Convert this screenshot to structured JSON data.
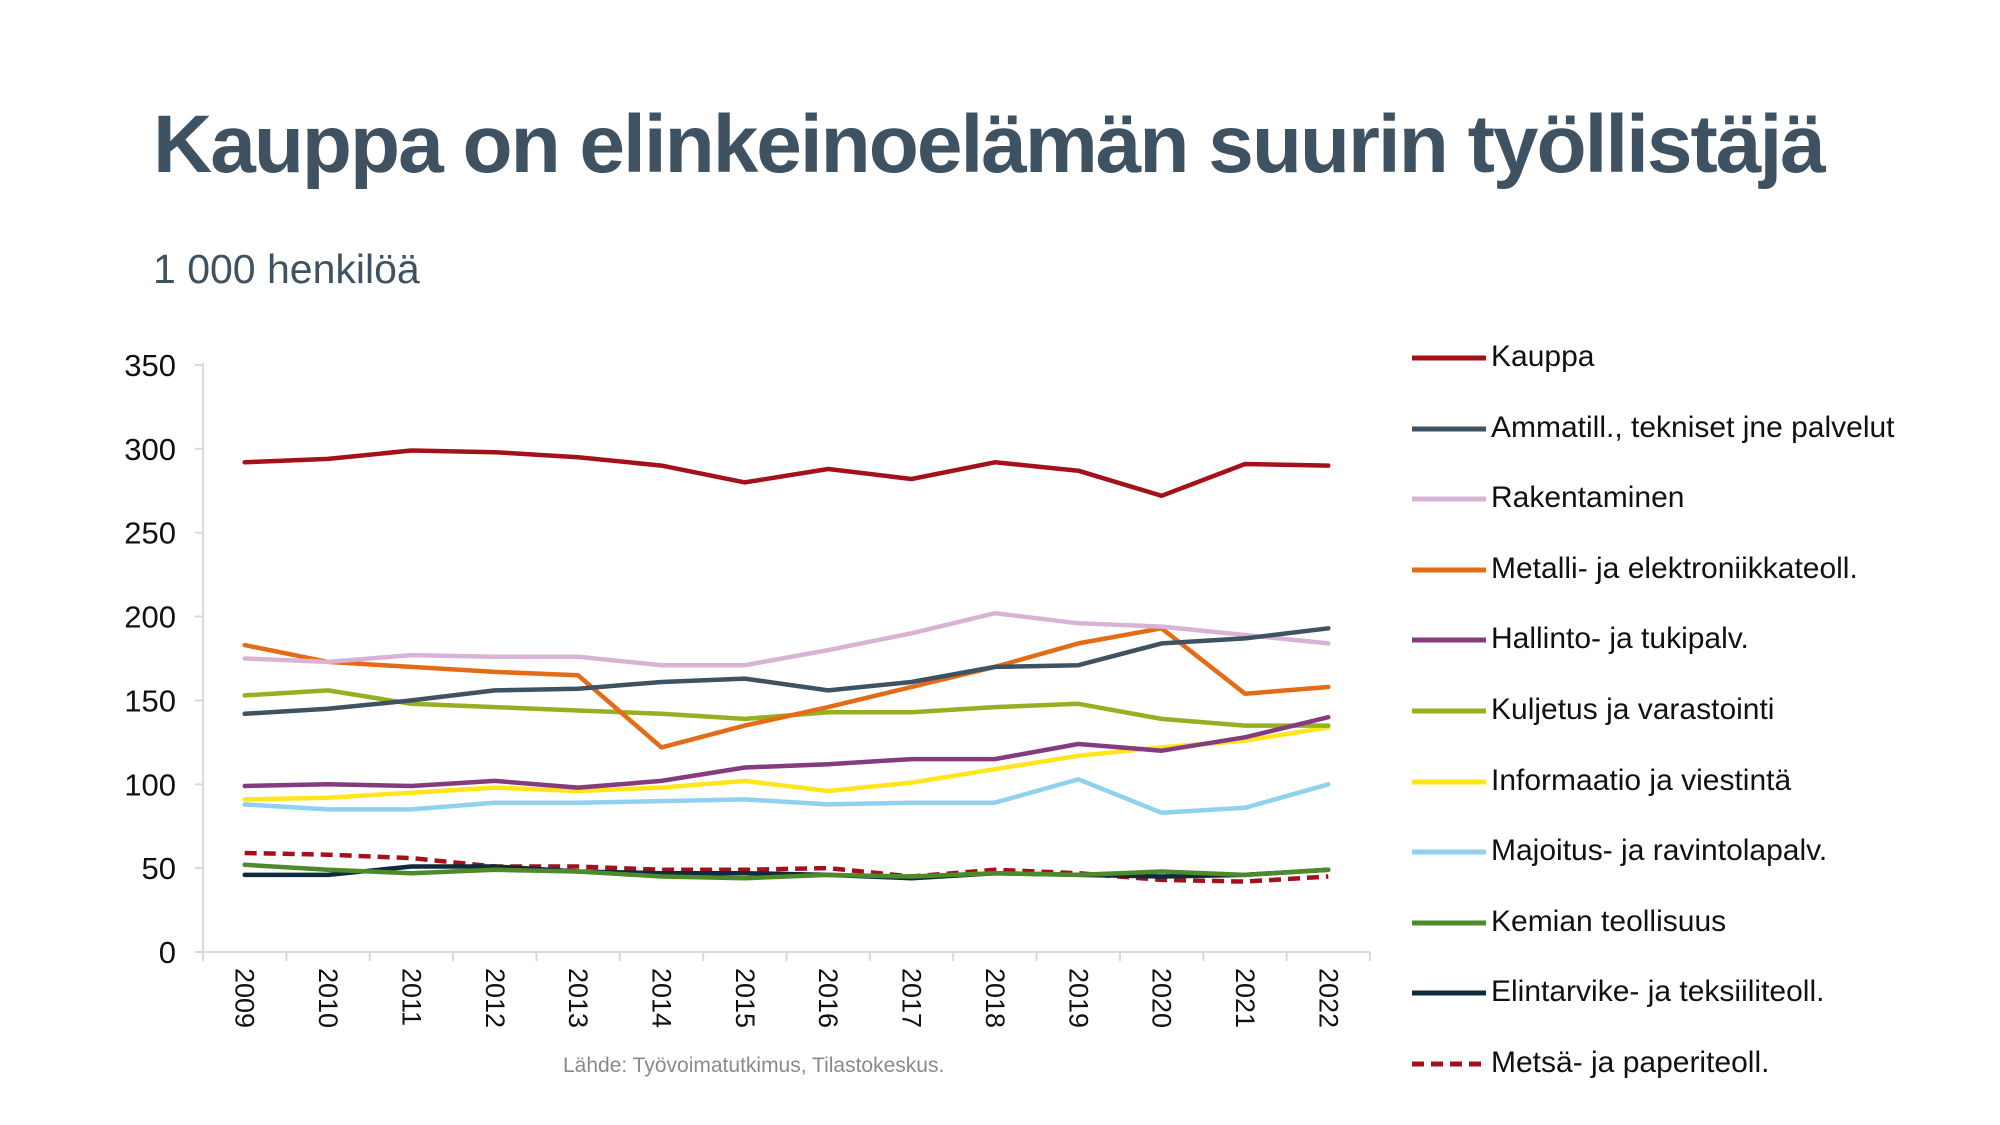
{
  "title": "Kauppa on elinkeinoelämän suurin työllistäjä",
  "subtitle": "1 000 henkilöä",
  "source": "Lähde: Työvoimatutkimus, Tilastokeskus.",
  "chart_data": {
    "type": "line",
    "categories": [
      "2009",
      "2010",
      "2011",
      "2012",
      "2013",
      "2014",
      "2015",
      "2016",
      "2017",
      "2018",
      "2019",
      "2020",
      "2021",
      "2022"
    ],
    "ylim": [
      0,
      350
    ],
    "yticks": [
      0,
      50,
      100,
      150,
      200,
      250,
      300,
      350
    ],
    "grid": false,
    "legend_position": "right",
    "series": [
      {
        "name": "Kauppa",
        "color": "#a5111a",
        "dash": false,
        "values": [
          292,
          294,
          299,
          298,
          295,
          290,
          280,
          288,
          282,
          292,
          287,
          272,
          291,
          290
        ]
      },
      {
        "name": "Ammatill., tekniset jne palvelut",
        "color": "#3e5262",
        "dash": false,
        "values": [
          142,
          145,
          150,
          156,
          157,
          161,
          163,
          156,
          161,
          170,
          171,
          184,
          187,
          193
        ]
      },
      {
        "name": "Rakentaminen",
        "color": "#d8b3d6",
        "dash": false,
        "values": [
          175,
          173,
          177,
          176,
          176,
          171,
          171,
          180,
          190,
          202,
          196,
          194,
          189,
          184
        ]
      },
      {
        "name": "Metalli- ja elektroniikkateoll.",
        "color": "#e46c17",
        "dash": false,
        "values": [
          183,
          173,
          170,
          167,
          165,
          122,
          135,
          146,
          158,
          170,
          184,
          193,
          154,
          158
        ]
      },
      {
        "name": "Hallinto- ja tukipalv.",
        "color": "#843b7f",
        "dash": false,
        "values": [
          99,
          100,
          99,
          102,
          98,
          102,
          110,
          112,
          115,
          115,
          124,
          120,
          128,
          140
        ]
      },
      {
        "name": "Kuljetus ja varastointi",
        "color": "#96b022",
        "dash": false,
        "values": [
          153,
          156,
          148,
          146,
          144,
          142,
          139,
          143,
          143,
          146,
          148,
          139,
          135,
          135
        ]
      },
      {
        "name": "Informaatio ja viestintä",
        "color": "#ffe51c",
        "dash": false,
        "values": [
          91,
          92,
          95,
          98,
          96,
          98,
          102,
          96,
          101,
          109,
          117,
          122,
          126,
          134
        ]
      },
      {
        "name": "Majoitus- ja ravintolapalv.",
        "color": "#8fd1ee",
        "dash": false,
        "values": [
          88,
          85,
          85,
          89,
          89,
          90,
          91,
          88,
          89,
          89,
          103,
          83,
          86,
          100
        ]
      },
      {
        "name": "Kemian teollisuus",
        "color": "#4d8a2a",
        "dash": false,
        "values": [
          52,
          49,
          47,
          49,
          48,
          45,
          44,
          46,
          45,
          47,
          46,
          48,
          46,
          49
        ]
      },
      {
        "name": "Elintarvike- ja teksiiliteoll.",
        "color": "#0e2a3b",
        "dash": false,
        "values": [
          46,
          46,
          51,
          51,
          48,
          47,
          47,
          46,
          44,
          47,
          46,
          45,
          46,
          49
        ]
      },
      {
        "name": "Metsä- ja paperiteoll.",
        "color": "#a5111a",
        "dash": true,
        "values": [
          59,
          58,
          56,
          51,
          51,
          49,
          49,
          50,
          45,
          49,
          47,
          43,
          42,
          45
        ]
      }
    ]
  }
}
